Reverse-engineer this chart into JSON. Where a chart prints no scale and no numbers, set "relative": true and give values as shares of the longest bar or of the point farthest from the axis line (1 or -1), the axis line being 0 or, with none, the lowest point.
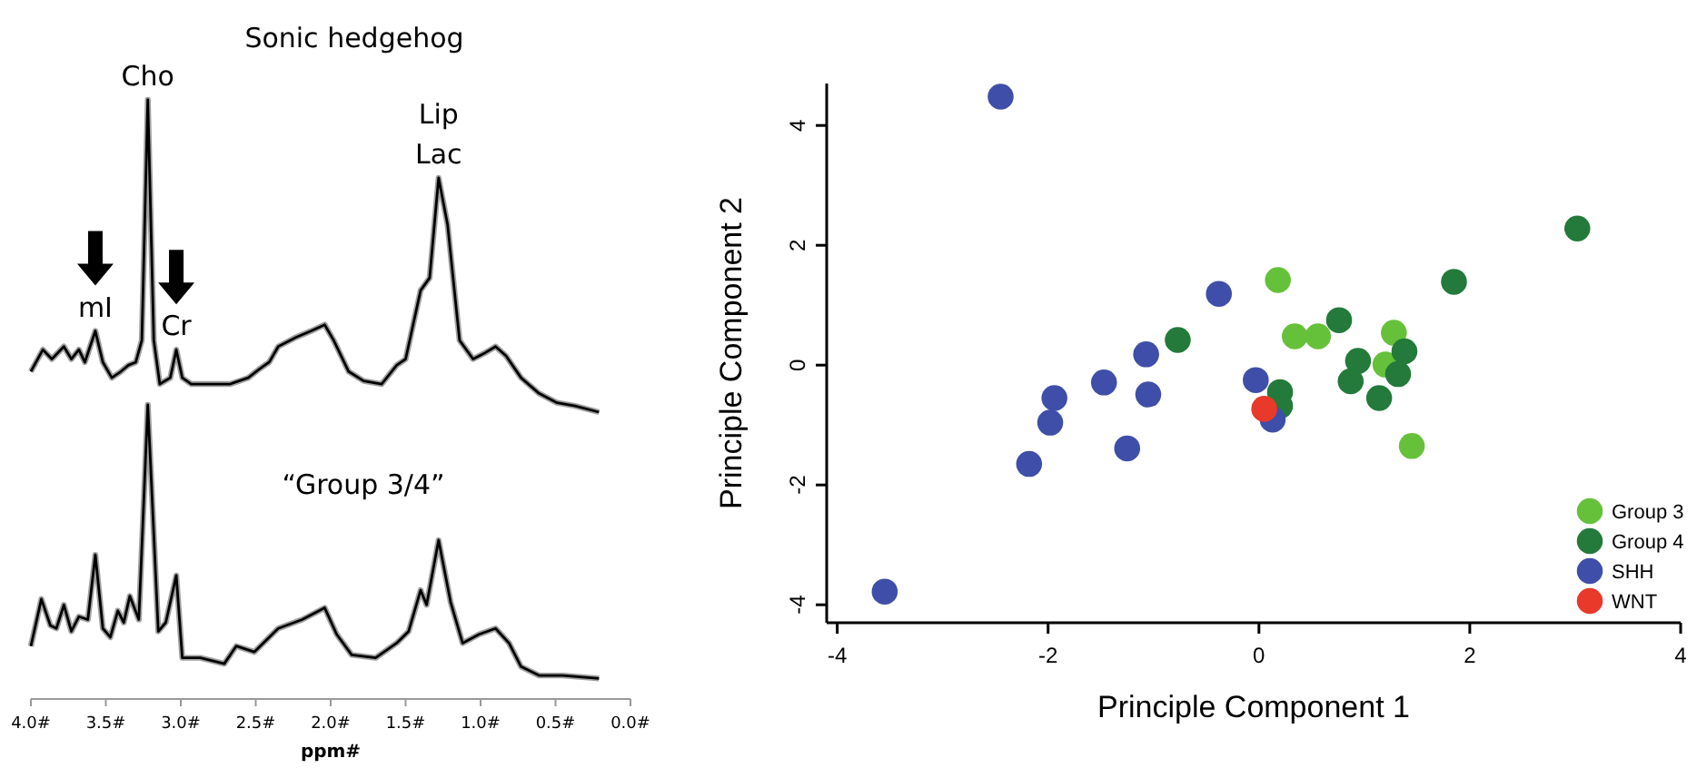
{
  "chart_data": [
    {
      "type": "line",
      "title": "Sonic hedgehog",
      "relative": true,
      "xlim": [
        4,
        0
      ],
      "tick_labels": false,
      "annotations": [
        {
          "text": "Cho",
          "x": 3.22,
          "y": 1
        },
        {
          "text": "Lip Lac",
          "x": 1.28,
          "y": 0.75
        },
        {
          "text": "mI",
          "x": 3.57,
          "y": 0.26
        },
        {
          "text": "Cr",
          "x": 3.03,
          "y": 0.2
        }
      ],
      "series": [
        {
          "color": "#000000",
          "x": [
            4.0,
            3.92,
            3.86,
            3.78,
            3.73,
            3.68,
            3.64,
            3.57,
            3.52,
            3.46,
            3.4,
            3.35,
            3.3,
            3.26,
            3.22,
            3.18,
            3.14,
            3.07,
            3.03,
            2.99,
            2.93,
            2.79,
            2.67,
            2.55,
            2.47,
            2.41,
            2.35,
            2.23,
            2.13,
            2.04,
            1.98,
            1.88,
            1.78,
            1.66,
            1.56,
            1.5,
            1.4,
            1.34,
            1.28,
            1.22,
            1.14,
            1.05,
            0.97,
            0.9,
            0.83,
            0.73,
            0.61,
            0.49,
            0.37,
            0.21
          ],
          "values": [
            0.13,
            0.2,
            0.17,
            0.21,
            0.17,
            0.2,
            0.16,
            0.26,
            0.16,
            0.11,
            0.13,
            0.15,
            0.16,
            0.23,
            1,
            0.23,
            0.09,
            0.11,
            0.2,
            0.11,
            0.09,
            0.09,
            0.09,
            0.11,
            0.14,
            0.16,
            0.21,
            0.24,
            0.26,
            0.28,
            0.23,
            0.13,
            0.1,
            0.09,
            0.15,
            0.17,
            0.39,
            0.43,
            0.75,
            0.6,
            0.23,
            0.17,
            0.19,
            0.21,
            0.18,
            0.11,
            0.06,
            0.03,
            0.02,
            0
          ]
        }
      ]
    },
    {
      "type": "line",
      "title": "“Group 3/4”",
      "xlabel": "ppm#",
      "relative": true,
      "xlim": [
        4,
        0
      ],
      "tick_labels": "x",
      "xticks": [
        {
          "value": 4,
          "label": "4.0#"
        },
        {
          "value": 3.5,
          "label": "3.5#"
        },
        {
          "value": 3,
          "label": "3.0#"
        },
        {
          "value": 2.5,
          "label": "2.5#"
        },
        {
          "value": 2,
          "label": "2.0#"
        },
        {
          "value": 1.5,
          "label": "1.5#"
        },
        {
          "value": 1,
          "label": "1.0#"
        },
        {
          "value": 0.5,
          "label": "0.5#"
        },
        {
          "value": 0,
          "label": "0.0#"
        }
      ],
      "series": [
        {
          "color": "#000000",
          "x": [
            4.0,
            3.93,
            3.87,
            3.83,
            3.78,
            3.73,
            3.68,
            3.62,
            3.57,
            3.52,
            3.47,
            3.42,
            3.38,
            3.34,
            3.28,
            3.22,
            3.15,
            3.1,
            3.03,
            2.99,
            2.87,
            2.71,
            2.63,
            2.51,
            2.43,
            2.35,
            2.19,
            2.04,
            1.96,
            1.86,
            1.7,
            1.56,
            1.48,
            1.4,
            1.36,
            1.28,
            1.2,
            1.12,
            1.01,
            0.9,
            0.81,
            0.73,
            0.61,
            0.45,
            0.21
          ],
          "values": [
            0.18,
            0.34,
            0.25,
            0.24,
            0.32,
            0.23,
            0.28,
            0.27,
            0.49,
            0.24,
            0.21,
            0.3,
            0.26,
            0.35,
            0.27,
            1,
            0.23,
            0.26,
            0.42,
            0.14,
            0.14,
            0.12,
            0.18,
            0.16,
            0.2,
            0.24,
            0.27,
            0.31,
            0.22,
            0.15,
            0.14,
            0.19,
            0.23,
            0.37,
            0.32,
            0.54,
            0.33,
            0.19,
            0.22,
            0.24,
            0.19,
            0.11,
            0.08,
            0.08,
            0.07
          ]
        }
      ]
    },
    {
      "type": "scatter",
      "xlabel": "Principle Component 1",
      "ylabel": "Principle Component 2",
      "xlim": [
        -4.1,
        4
      ],
      "ylim": [
        -4.3,
        4.7
      ],
      "xticks": [
        -4,
        -2,
        0,
        2,
        4
      ],
      "yticks": [
        -4,
        -2,
        0,
        2,
        4
      ],
      "legend": "bottom right",
      "marker": "circle",
      "series": [
        {
          "name": "Group 3",
          "color": "#66c13a",
          "x": [
            0.18,
            0.34,
            0.56,
            1.2,
            1.28,
            1.45
          ],
          "values": [
            1.42,
            0.48,
            0.48,
            0.01,
            0.54,
            -1.35
          ]
        },
        {
          "name": "Group 4",
          "color": "#237a3b",
          "x": [
            -0.77,
            0.2,
            0.2,
            0.76,
            0.94,
            0.87,
            1.14,
            1.38,
            1.32,
            1.85,
            3.02
          ],
          "values": [
            0.42,
            -0.45,
            -0.68,
            0.75,
            0.07,
            -0.27,
            -0.55,
            0.23,
            -0.15,
            1.39,
            2.28
          ]
        },
        {
          "name": "SHH",
          "color": "#3f4ea8",
          "x": [
            -2.45,
            -3.55,
            -0.38,
            -1.07,
            -1.47,
            -1.94,
            -1.98,
            -1.05,
            -1.25,
            -2.18,
            -0.03,
            0.13
          ],
          "values": [
            4.48,
            -3.78,
            1.19,
            0.18,
            -0.29,
            -0.55,
            -0.96,
            -0.49,
            -1.39,
            -1.65,
            -0.25,
            -0.91
          ]
        },
        {
          "name": "WNT",
          "color": "#e8392a",
          "x": [
            0.05
          ],
          "values": [
            -0.73
          ]
        }
      ]
    }
  ]
}
